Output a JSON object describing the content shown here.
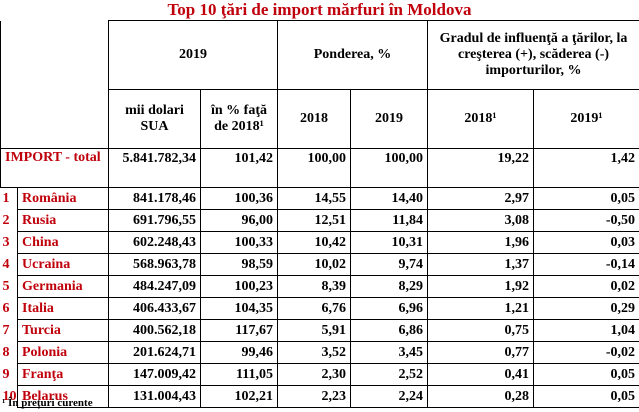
{
  "title": "Top 10 ţări de import mărfuri în Moldova",
  "headers": {
    "year_2019": "2019",
    "share": "Ponderea, %",
    "influence": "Gradul de influenţă a ţărilor, la creşterea (+),  scăderea (-) importurilor, %",
    "usd_thousands": "mii dolari SUA",
    "pct_vs_2018": "în % faţă de 2018¹",
    "share_2018": "2018",
    "share_2019": "2019",
    "infl_2018": "2018¹",
    "infl_2019": "2019¹"
  },
  "total": {
    "label": "IMPORT - total",
    "usd": "5.841.782,34",
    "pct": "101,42",
    "share_2018": "100,00",
    "share_2019": "100,00",
    "infl_2018": "19,22",
    "infl_2019": "1,42"
  },
  "rows": [
    {
      "idx": "1",
      "country": "România",
      "usd": "841.178,46",
      "pct": "100,36",
      "share_2018": "14,55",
      "share_2019": "14,40",
      "infl_2018": "2,97",
      "infl_2019": "0,05"
    },
    {
      "idx": "2",
      "country": "Rusia",
      "usd": "691.796,55",
      "pct": "96,00",
      "share_2018": "12,51",
      "share_2019": "11,84",
      "infl_2018": "3,08",
      "infl_2019": "-0,50"
    },
    {
      "idx": "3",
      "country": "China",
      "usd": "602.248,43",
      "pct": "100,33",
      "share_2018": "10,42",
      "share_2019": "10,31",
      "infl_2018": "1,96",
      "infl_2019": "0,03"
    },
    {
      "idx": "4",
      "country": "Ucraina",
      "usd": "568.963,78",
      "pct": "98,59",
      "share_2018": "10,02",
      "share_2019": "9,74",
      "infl_2018": "1,37",
      "infl_2019": "-0,14"
    },
    {
      "idx": "5",
      "country": "Germania",
      "usd": "484.247,09",
      "pct": "100,23",
      "share_2018": "8,39",
      "share_2019": "8,29",
      "infl_2018": "1,92",
      "infl_2019": "0,02"
    },
    {
      "idx": "6",
      "country": "Italia",
      "usd": "406.433,67",
      "pct": "104,35",
      "share_2018": "6,76",
      "share_2019": "6,96",
      "infl_2018": "1,21",
      "infl_2019": "0,29"
    },
    {
      "idx": "7",
      "country": "Turcia",
      "usd": "400.562,18",
      "pct": "117,67",
      "share_2018": "5,91",
      "share_2019": "6,86",
      "infl_2018": "0,75",
      "infl_2019": "1,04"
    },
    {
      "idx": "8",
      "country": "Polonia",
      "usd": "201.624,71",
      "pct": "99,46",
      "share_2018": "3,52",
      "share_2019": "3,45",
      "infl_2018": "0,77",
      "infl_2019": "-0,02"
    },
    {
      "idx": "9",
      "country": "Franţa",
      "usd": "147.009,42",
      "pct": "111,05",
      "share_2018": "2,30",
      "share_2019": "2,52",
      "infl_2018": "0,41",
      "infl_2019": "0,05"
    },
    {
      "idx": "10",
      "country": "Belarus",
      "usd": "131.004,43",
      "pct": "102,21",
      "share_2018": "2,23",
      "share_2019": "2,24",
      "infl_2018": "0,28",
      "infl_2019": "0,05"
    }
  ],
  "footnote": "¹ În preţuri curente",
  "colors": {
    "accent": "#c0000b",
    "text": "#000000",
    "border": "#000000"
  }
}
